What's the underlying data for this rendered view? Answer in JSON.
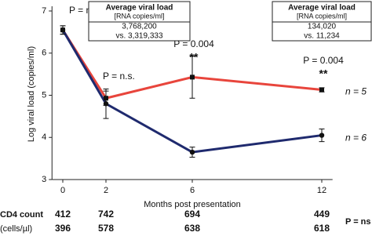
{
  "chart_data": {
    "type": "line",
    "y_label": "Log viral load (copies/ml)",
    "x_label": "Months post presentation",
    "x": [
      0,
      2,
      6,
      12
    ],
    "xlim": [
      -0.5,
      12.5
    ],
    "xticks": [
      0,
      2,
      6,
      12
    ],
    "ylim": [
      3,
      7
    ],
    "yticks": [
      3,
      4,
      5,
      6,
      7
    ],
    "series": [
      {
        "name": "n = 5",
        "color": "#e8453c",
        "marker": "square",
        "values": [
          6.55,
          4.93,
          5.43,
          5.13
        ],
        "errors": [
          0.1,
          0.17,
          0.5,
          0.05
        ]
      },
      {
        "name": "n = 6",
        "color": "#1f2a6e",
        "marker": "circle",
        "values": [
          6.55,
          4.8,
          3.65,
          4.05
        ],
        "errors": [
          0.1,
          0.35,
          0.12,
          0.15
        ]
      }
    ],
    "annotations": [
      "P = n.s.",
      "P = n.s.",
      "P = 0.004",
      "**",
      "P = 0.004",
      "**"
    ],
    "boxes": [
      {
        "title": "Average viral load",
        "subtitle": "[RNA copies/ml]",
        "lines": [
          "3,768,200",
          "vs. 3,319,333"
        ]
      },
      {
        "title": "Average viral load",
        "subtitle": "[RNA copies/ml]",
        "lines": [
          "134,020",
          "vs. 11,234"
        ]
      }
    ],
    "cd4": {
      "label": "CD4 count",
      "unit": "(cells/µl)",
      "rows": [
        [
          412,
          742,
          694,
          449
        ],
        [
          396,
          578,
          638,
          618
        ]
      ],
      "p_label": "P = ns"
    }
  }
}
